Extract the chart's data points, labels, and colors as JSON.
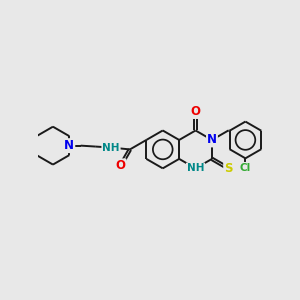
{
  "background_color": "#e8e8e8",
  "bond_color": "#1a1a1a",
  "bond_width": 1.4,
  "atom_colors": {
    "N": "#0000ee",
    "O": "#ee0000",
    "S": "#cccc00",
    "Cl": "#33aa33",
    "NH": "#008888",
    "C": "#1a1a1a"
  },
  "font_size_large": 8.5,
  "font_size_small": 7.5
}
